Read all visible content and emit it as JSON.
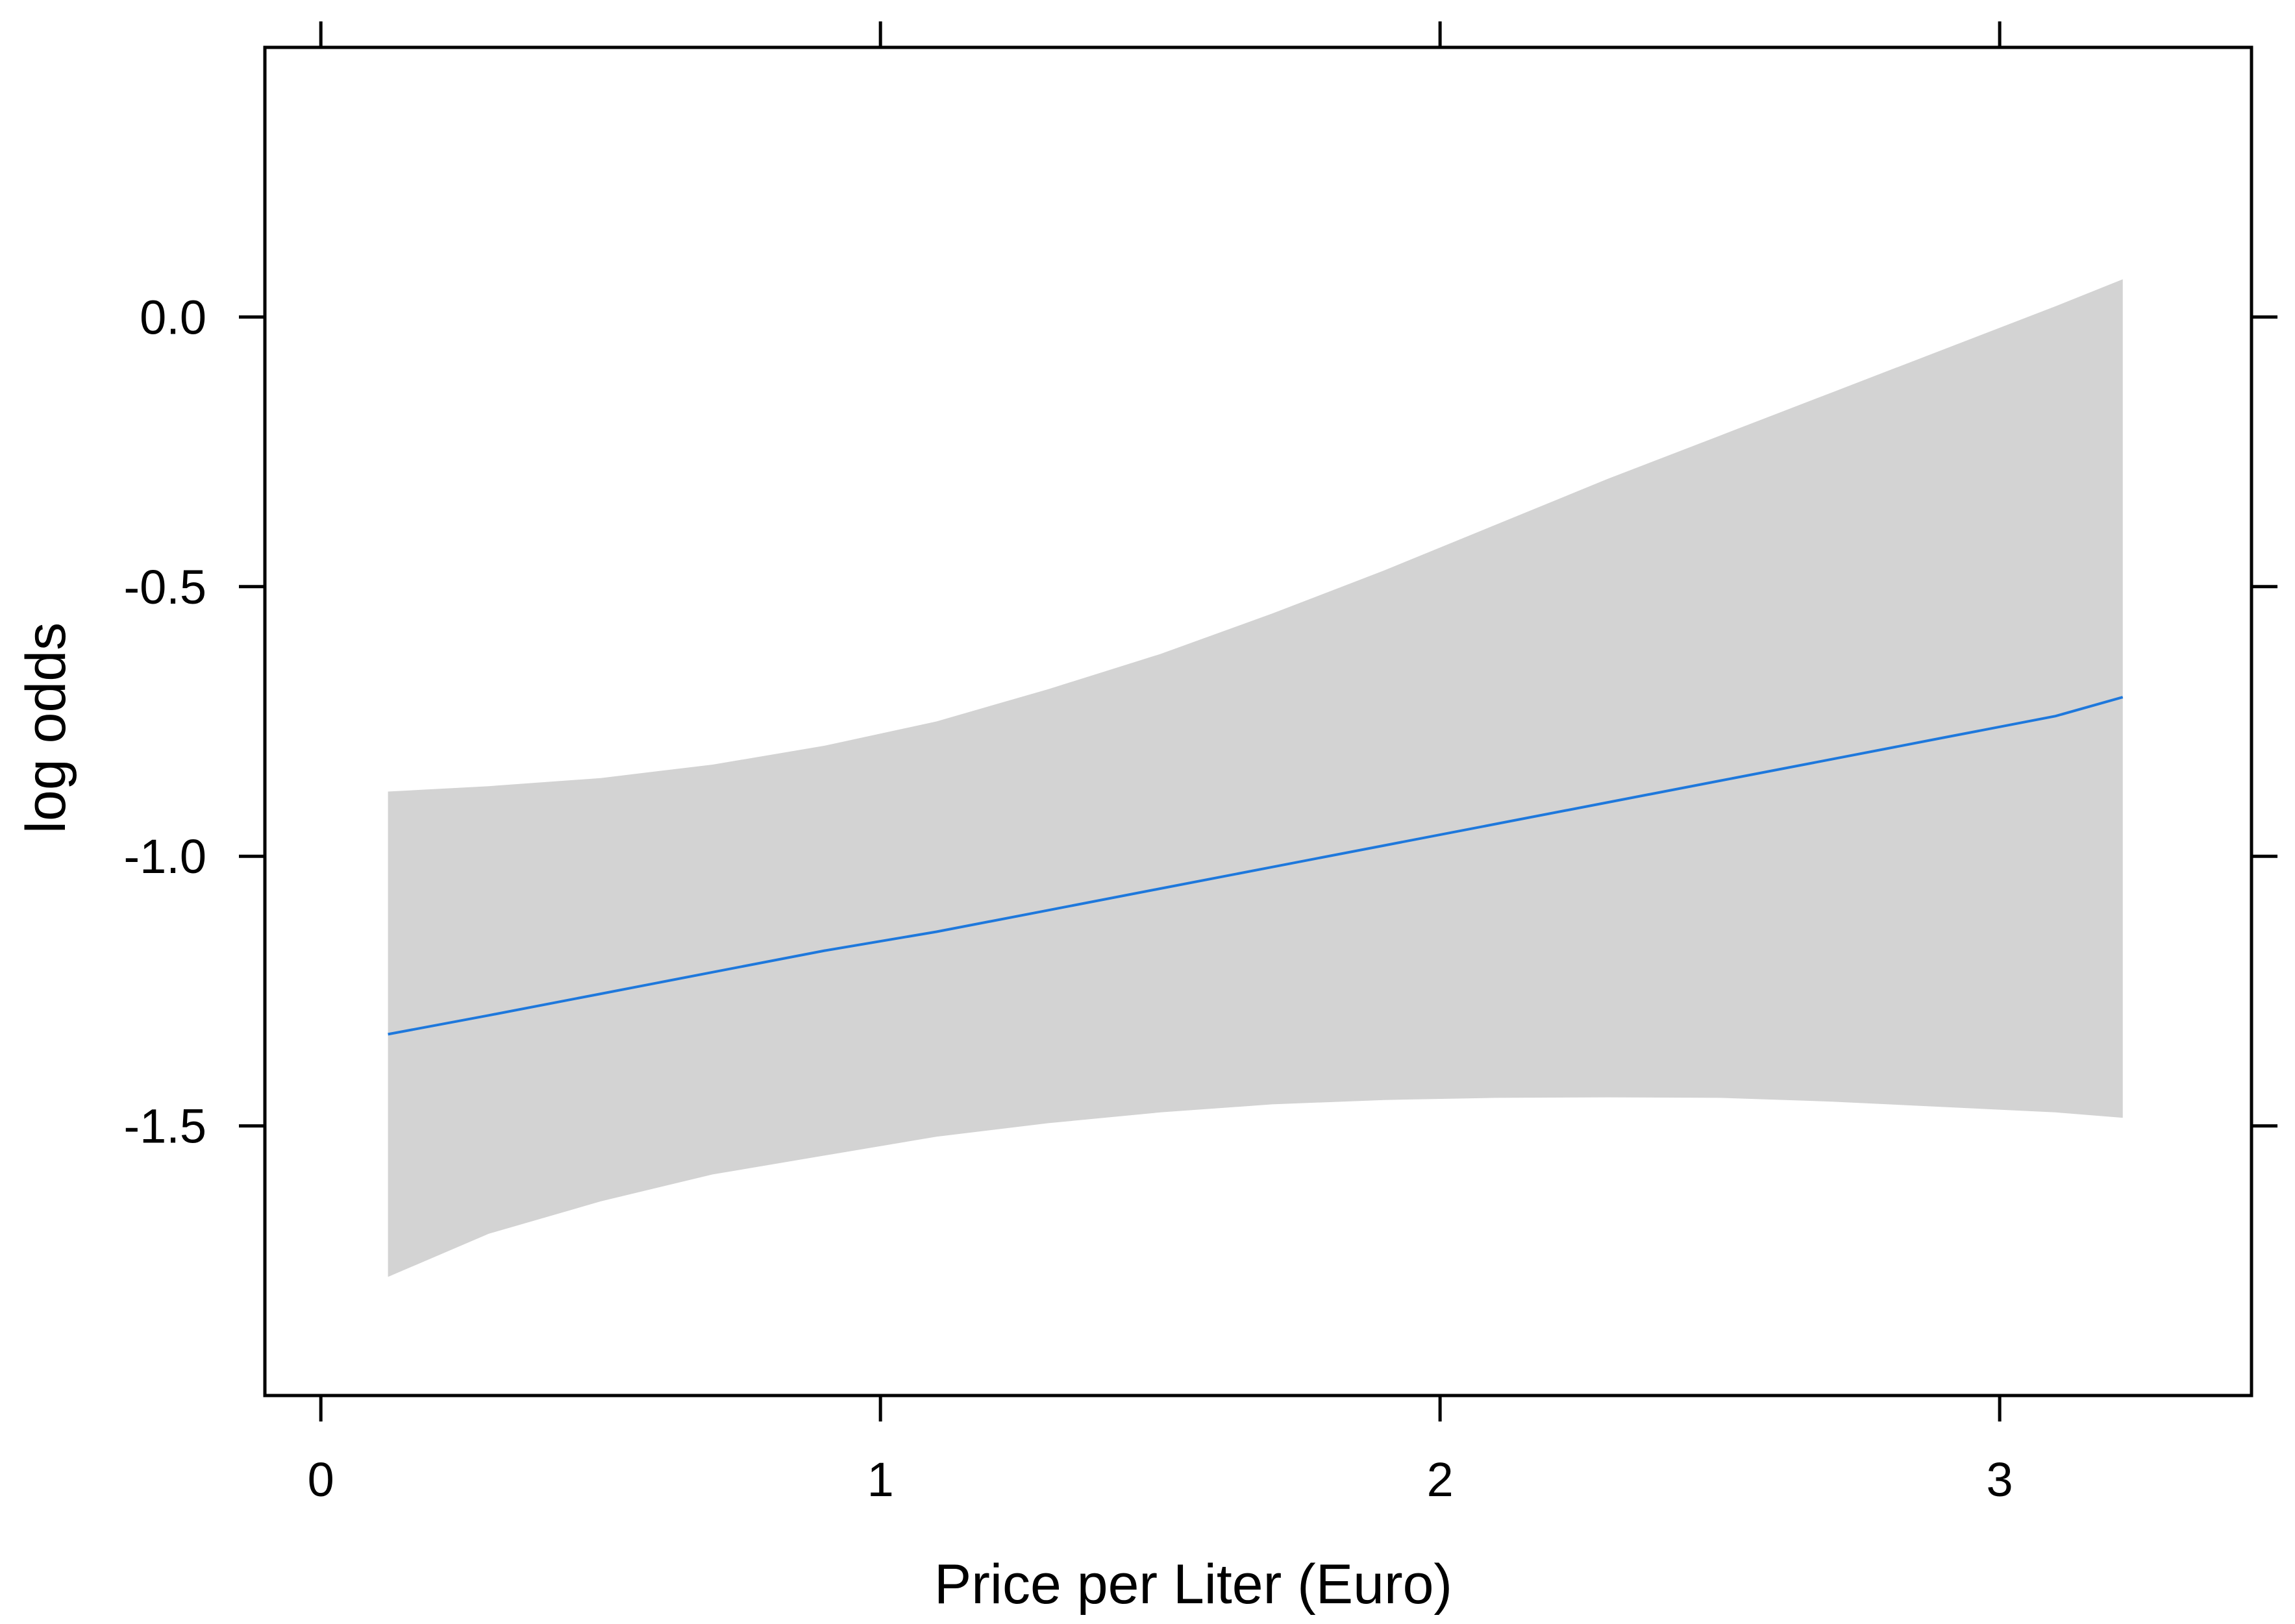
{
  "chart_data": {
    "type": "line",
    "title": "",
    "xlabel": "Price per Liter (Euro)",
    "ylabel": "log odds",
    "xlim": [
      -0.1,
      3.45
    ],
    "ylim": [
      -2.0,
      0.5
    ],
    "x_ticks": [
      0,
      1,
      2,
      3
    ],
    "x_tick_labels": [
      "0",
      "1",
      "2",
      "3"
    ],
    "y_ticks": [
      0.0,
      -0.5,
      -1.0,
      -1.5
    ],
    "y_tick_labels": [
      "0.0",
      "-0.5",
      "-1.0",
      "-1.5"
    ],
    "grid": false,
    "series": [
      {
        "color": "#1e78dc",
        "x": [
          0.12,
          0.3,
          0.5,
          0.7,
          0.9,
          1.1,
          1.3,
          1.5,
          1.7,
          1.9,
          2.1,
          2.3,
          2.5,
          2.7,
          2.9,
          3.1,
          3.22
        ],
        "values": [
          -1.33,
          -1.295,
          -1.255,
          -1.215,
          -1.175,
          -1.14,
          -1.1,
          -1.06,
          -1.02,
          -0.98,
          -0.94,
          -0.9,
          -0.86,
          -0.82,
          -0.78,
          -0.74,
          -0.705
        ]
      }
    ],
    "confidence_band": {
      "color": "#d3d3d3",
      "x": [
        0.12,
        0.3,
        0.5,
        0.7,
        0.9,
        1.1,
        1.3,
        1.5,
        1.7,
        1.9,
        2.1,
        2.3,
        2.5,
        2.7,
        2.9,
        3.1,
        3.22
      ],
      "upper": [
        -0.88,
        -0.87,
        -0.855,
        -0.83,
        -0.795,
        -0.75,
        -0.69,
        -0.625,
        -0.55,
        -0.47,
        -0.385,
        -0.3,
        -0.22,
        -0.14,
        -0.06,
        0.02,
        0.07
      ],
      "lower": [
        -1.78,
        -1.7,
        -1.64,
        -1.59,
        -1.555,
        -1.52,
        -1.495,
        -1.475,
        -1.46,
        -1.452,
        -1.448,
        -1.447,
        -1.448,
        -1.455,
        -1.465,
        -1.475,
        -1.485
      ]
    }
  }
}
